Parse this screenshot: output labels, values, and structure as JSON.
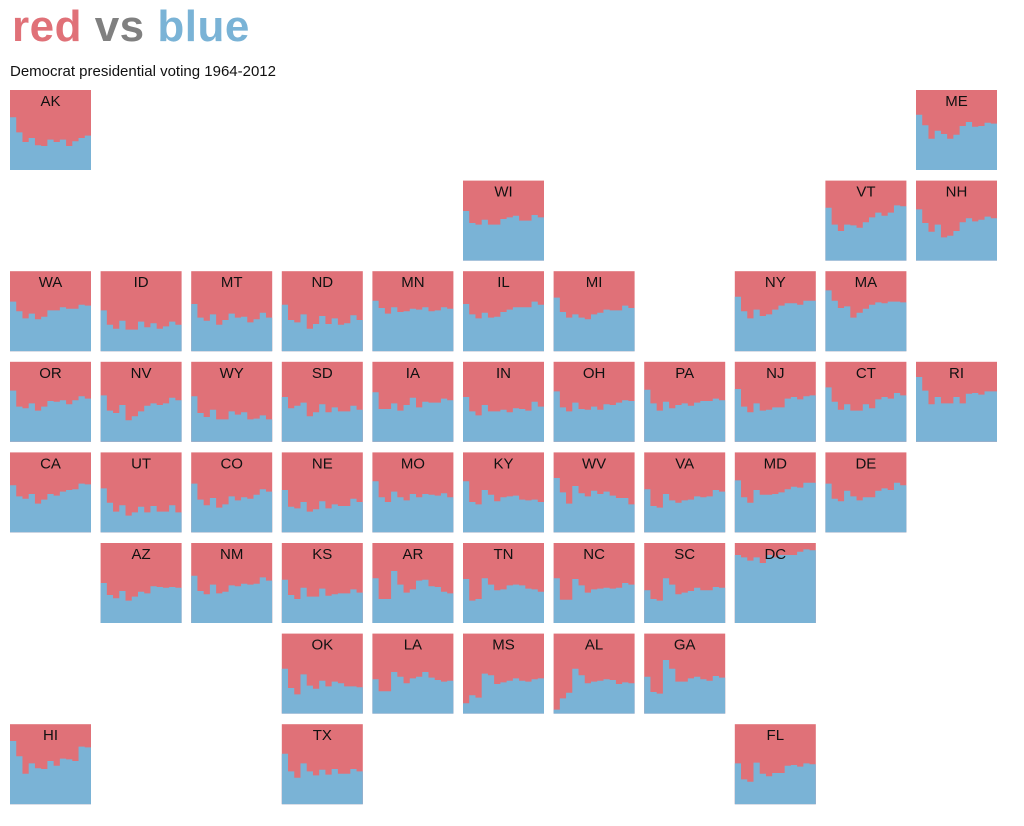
{
  "title": {
    "part1": "red",
    "part2": " vs ",
    "part3": "blue"
  },
  "subtitle": "Democrat presidential voting 1964-2012",
  "colors": {
    "red": "#e07178",
    "gray": "#808080",
    "blue": "#7ab3d6"
  },
  "chart_data": {
    "type": "area",
    "years": [
      1964,
      1968,
      1972,
      1976,
      1980,
      1984,
      1988,
      1992,
      1996,
      2000,
      2004,
      2008,
      2012
    ],
    "value_meaning": "democrat_share",
    "ylim": [
      0,
      1
    ],
    "states": [
      {
        "abbr": "AK",
        "col": 0,
        "row": 0,
        "values": [
          0.66,
          0.47,
          0.35,
          0.4,
          0.31,
          0.3,
          0.38,
          0.35,
          0.38,
          0.3,
          0.36,
          0.4,
          0.43
        ]
      },
      {
        "abbr": "ME",
        "col": 10,
        "row": 0,
        "values": [
          0.69,
          0.56,
          0.39,
          0.49,
          0.45,
          0.39,
          0.44,
          0.55,
          0.6,
          0.54,
          0.55,
          0.59,
          0.58
        ]
      },
      {
        "abbr": "WI",
        "col": 5,
        "row": 1,
        "values": [
          0.62,
          0.47,
          0.45,
          0.51,
          0.45,
          0.45,
          0.52,
          0.54,
          0.56,
          0.5,
          0.5,
          0.57,
          0.54
        ]
      },
      {
        "abbr": "VT",
        "col": 9,
        "row": 1,
        "values": [
          0.66,
          0.45,
          0.37,
          0.45,
          0.44,
          0.41,
          0.48,
          0.54,
          0.6,
          0.56,
          0.6,
          0.69,
          0.68
        ]
      },
      {
        "abbr": "NH",
        "col": 10,
        "row": 1,
        "values": [
          0.64,
          0.47,
          0.36,
          0.45,
          0.29,
          0.31,
          0.37,
          0.48,
          0.53,
          0.49,
          0.51,
          0.55,
          0.53
        ]
      },
      {
        "abbr": "WA",
        "col": 0,
        "row": 2,
        "values": [
          0.62,
          0.5,
          0.41,
          0.47,
          0.4,
          0.43,
          0.51,
          0.51,
          0.55,
          0.53,
          0.53,
          0.58,
          0.57
        ]
      },
      {
        "abbr": "ID",
        "col": 1,
        "row": 2,
        "values": [
          0.51,
          0.33,
          0.28,
          0.38,
          0.27,
          0.27,
          0.37,
          0.3,
          0.35,
          0.28,
          0.31,
          0.37,
          0.33
        ]
      },
      {
        "abbr": "MT",
        "col": 2,
        "row": 2,
        "values": [
          0.59,
          0.42,
          0.38,
          0.46,
          0.33,
          0.39,
          0.47,
          0.42,
          0.43,
          0.36,
          0.4,
          0.48,
          0.42
        ]
      },
      {
        "abbr": "ND",
        "col": 3,
        "row": 2,
        "values": [
          0.58,
          0.39,
          0.36,
          0.46,
          0.28,
          0.34,
          0.44,
          0.34,
          0.41,
          0.33,
          0.35,
          0.45,
          0.39
        ]
      },
      {
        "abbr": "MN",
        "col": 4,
        "row": 2,
        "values": [
          0.63,
          0.54,
          0.47,
          0.55,
          0.49,
          0.5,
          0.53,
          0.52,
          0.55,
          0.5,
          0.51,
          0.55,
          0.53
        ]
      },
      {
        "abbr": "IL",
        "col": 5,
        "row": 2,
        "values": [
          0.59,
          0.46,
          0.41,
          0.48,
          0.42,
          0.43,
          0.49,
          0.52,
          0.55,
          0.55,
          0.55,
          0.62,
          0.58
        ]
      },
      {
        "abbr": "MI",
        "col": 6,
        "row": 2,
        "values": [
          0.67,
          0.49,
          0.42,
          0.46,
          0.42,
          0.4,
          0.46,
          0.48,
          0.52,
          0.51,
          0.51,
          0.57,
          0.54
        ]
      },
      {
        "abbr": "NY",
        "col": 8,
        "row": 2,
        "values": [
          0.68,
          0.5,
          0.41,
          0.52,
          0.44,
          0.46,
          0.52,
          0.57,
          0.6,
          0.6,
          0.58,
          0.63,
          0.63
        ]
      },
      {
        "abbr": "MA",
        "col": 9,
        "row": 2,
        "values": [
          0.76,
          0.63,
          0.54,
          0.56,
          0.42,
          0.48,
          0.53,
          0.58,
          0.61,
          0.6,
          0.62,
          0.62,
          0.61
        ]
      },
      {
        "abbr": "OR",
        "col": 0,
        "row": 3,
        "values": [
          0.64,
          0.44,
          0.42,
          0.48,
          0.39,
          0.44,
          0.51,
          0.5,
          0.52,
          0.47,
          0.52,
          0.57,
          0.54
        ]
      },
      {
        "abbr": "NV",
        "col": 1,
        "row": 3,
        "values": [
          0.58,
          0.39,
          0.36,
          0.46,
          0.27,
          0.32,
          0.38,
          0.45,
          0.48,
          0.46,
          0.48,
          0.55,
          0.52
        ]
      },
      {
        "abbr": "WY",
        "col": 2,
        "row": 3,
        "values": [
          0.57,
          0.36,
          0.31,
          0.4,
          0.28,
          0.28,
          0.38,
          0.34,
          0.37,
          0.28,
          0.29,
          0.33,
          0.28
        ]
      },
      {
        "abbr": "SD",
        "col": 3,
        "row": 3,
        "values": [
          0.56,
          0.42,
          0.45,
          0.49,
          0.32,
          0.37,
          0.47,
          0.37,
          0.43,
          0.38,
          0.38,
          0.45,
          0.4
        ]
      },
      {
        "abbr": "IA",
        "col": 4,
        "row": 3,
        "values": [
          0.62,
          0.41,
          0.41,
          0.48,
          0.39,
          0.46,
          0.55,
          0.43,
          0.5,
          0.49,
          0.49,
          0.54,
          0.52
        ]
      },
      {
        "abbr": "IN",
        "col": 5,
        "row": 3,
        "values": [
          0.56,
          0.38,
          0.33,
          0.46,
          0.38,
          0.38,
          0.4,
          0.37,
          0.42,
          0.41,
          0.39,
          0.5,
          0.44
        ]
      },
      {
        "abbr": "OH",
        "col": 6,
        "row": 3,
        "values": [
          0.63,
          0.43,
          0.38,
          0.49,
          0.41,
          0.4,
          0.44,
          0.4,
          0.47,
          0.46,
          0.49,
          0.52,
          0.51
        ]
      },
      {
        "abbr": "PA",
        "col": 7,
        "row": 3,
        "values": [
          0.65,
          0.48,
          0.39,
          0.5,
          0.42,
          0.46,
          0.48,
          0.45,
          0.49,
          0.51,
          0.51,
          0.54,
          0.52
        ]
      },
      {
        "abbr": "NJ",
        "col": 8,
        "row": 3,
        "values": [
          0.66,
          0.44,
          0.37,
          0.48,
          0.39,
          0.4,
          0.43,
          0.43,
          0.54,
          0.56,
          0.53,
          0.57,
          0.58
        ]
      },
      {
        "abbr": "CT",
        "col": 9,
        "row": 3,
        "values": [
          0.68,
          0.5,
          0.4,
          0.47,
          0.39,
          0.39,
          0.47,
          0.42,
          0.53,
          0.56,
          0.54,
          0.61,
          0.58
        ]
      },
      {
        "abbr": "RI",
        "col": 10,
        "row": 3,
        "values": [
          0.81,
          0.64,
          0.47,
          0.56,
          0.48,
          0.48,
          0.56,
          0.48,
          0.6,
          0.61,
          0.59,
          0.63,
          0.63
        ]
      },
      {
        "abbr": "CA",
        "col": 0,
        "row": 4,
        "values": [
          0.59,
          0.45,
          0.42,
          0.48,
          0.36,
          0.41,
          0.48,
          0.46,
          0.51,
          0.53,
          0.54,
          0.61,
          0.6
        ]
      },
      {
        "abbr": "UT",
        "col": 1,
        "row": 4,
        "values": [
          0.55,
          0.37,
          0.26,
          0.34,
          0.21,
          0.25,
          0.32,
          0.25,
          0.33,
          0.26,
          0.26,
          0.34,
          0.25
        ]
      },
      {
        "abbr": "CO",
        "col": 2,
        "row": 4,
        "values": [
          0.61,
          0.41,
          0.34,
          0.43,
          0.31,
          0.35,
          0.45,
          0.4,
          0.44,
          0.42,
          0.47,
          0.54,
          0.51
        ]
      },
      {
        "abbr": "NE",
        "col": 3,
        "row": 4,
        "values": [
          0.53,
          0.32,
          0.3,
          0.38,
          0.26,
          0.29,
          0.39,
          0.3,
          0.35,
          0.33,
          0.33,
          0.42,
          0.38
        ]
      },
      {
        "abbr": "MO",
        "col": 4,
        "row": 4,
        "values": [
          0.64,
          0.44,
          0.38,
          0.51,
          0.44,
          0.4,
          0.48,
          0.44,
          0.48,
          0.47,
          0.46,
          0.49,
          0.44
        ]
      },
      {
        "abbr": "KY",
        "col": 5,
        "row": 4,
        "values": [
          0.64,
          0.38,
          0.35,
          0.53,
          0.47,
          0.39,
          0.44,
          0.45,
          0.46,
          0.41,
          0.4,
          0.41,
          0.38
        ]
      },
      {
        "abbr": "WV",
        "col": 6,
        "row": 4,
        "values": [
          0.68,
          0.5,
          0.36,
          0.58,
          0.49,
          0.45,
          0.52,
          0.48,
          0.51,
          0.46,
          0.43,
          0.43,
          0.35
        ]
      },
      {
        "abbr": "VA",
        "col": 7,
        "row": 4,
        "values": [
          0.54,
          0.33,
          0.31,
          0.48,
          0.4,
          0.37,
          0.4,
          0.41,
          0.45,
          0.44,
          0.45,
          0.53,
          0.51
        ]
      },
      {
        "abbr": "MD",
        "col": 8,
        "row": 4,
        "values": [
          0.65,
          0.44,
          0.37,
          0.53,
          0.47,
          0.47,
          0.48,
          0.5,
          0.54,
          0.57,
          0.56,
          0.62,
          0.62
        ]
      },
      {
        "abbr": "DE",
        "col": 9,
        "row": 4,
        "values": [
          0.61,
          0.42,
          0.39,
          0.52,
          0.45,
          0.4,
          0.44,
          0.44,
          0.52,
          0.55,
          0.53,
          0.62,
          0.59
        ]
      },
      {
        "abbr": "AZ",
        "col": 1,
        "row": 5,
        "values": [
          0.5,
          0.35,
          0.31,
          0.4,
          0.28,
          0.33,
          0.39,
          0.37,
          0.46,
          0.45,
          0.44,
          0.45,
          0.44
        ]
      },
      {
        "abbr": "NM",
        "col": 2,
        "row": 5,
        "values": [
          0.59,
          0.4,
          0.36,
          0.48,
          0.37,
          0.39,
          0.47,
          0.46,
          0.49,
          0.48,
          0.49,
          0.57,
          0.53
        ]
      },
      {
        "abbr": "KS",
        "col": 3,
        "row": 5,
        "values": [
          0.54,
          0.35,
          0.3,
          0.44,
          0.33,
          0.33,
          0.43,
          0.34,
          0.36,
          0.37,
          0.37,
          0.42,
          0.38
        ]
      },
      {
        "abbr": "AR",
        "col": 4,
        "row": 5,
        "values": [
          0.56,
          0.3,
          0.3,
          0.65,
          0.48,
          0.38,
          0.42,
          0.53,
          0.54,
          0.46,
          0.45,
          0.39,
          0.37
        ]
      },
      {
        "abbr": "TN",
        "col": 5,
        "row": 5,
        "values": [
          0.55,
          0.28,
          0.3,
          0.56,
          0.48,
          0.41,
          0.42,
          0.47,
          0.48,
          0.47,
          0.43,
          0.42,
          0.39
        ]
      },
      {
        "abbr": "NC",
        "col": 6,
        "row": 5,
        "values": [
          0.56,
          0.29,
          0.29,
          0.55,
          0.47,
          0.38,
          0.42,
          0.43,
          0.44,
          0.43,
          0.44,
          0.5,
          0.48
        ]
      },
      {
        "abbr": "SC",
        "col": 7,
        "row": 5,
        "values": [
          0.41,
          0.3,
          0.28,
          0.56,
          0.48,
          0.36,
          0.38,
          0.4,
          0.44,
          0.41,
          0.41,
          0.45,
          0.44
        ]
      },
      {
        "abbr": "DC",
        "col": 8,
        "row": 5,
        "values": [
          0.85,
          0.82,
          0.78,
          0.82,
          0.75,
          0.85,
          0.82,
          0.85,
          0.85,
          0.85,
          0.89,
          0.92,
          0.91
        ]
      },
      {
        "abbr": "OK",
        "col": 3,
        "row": 6,
        "values": [
          0.56,
          0.32,
          0.24,
          0.49,
          0.35,
          0.31,
          0.41,
          0.34,
          0.4,
          0.38,
          0.34,
          0.34,
          0.33
        ]
      },
      {
        "abbr": "LA",
        "col": 4,
        "row": 6,
        "values": [
          0.43,
          0.28,
          0.28,
          0.52,
          0.46,
          0.38,
          0.44,
          0.46,
          0.52,
          0.45,
          0.42,
          0.4,
          0.41
        ]
      },
      {
        "abbr": "MS",
        "col": 5,
        "row": 6,
        "values": [
          0.13,
          0.23,
          0.2,
          0.5,
          0.48,
          0.37,
          0.39,
          0.41,
          0.44,
          0.41,
          0.4,
          0.43,
          0.44
        ]
      },
      {
        "abbr": "AL",
        "col": 6,
        "row": 6,
        "values": [
          0.05,
          0.19,
          0.26,
          0.56,
          0.48,
          0.38,
          0.4,
          0.41,
          0.43,
          0.42,
          0.37,
          0.39,
          0.38
        ]
      },
      {
        "abbr": "GA",
        "col": 7,
        "row": 6,
        "values": [
          0.46,
          0.27,
          0.25,
          0.67,
          0.56,
          0.4,
          0.4,
          0.44,
          0.46,
          0.43,
          0.41,
          0.47,
          0.45
        ]
      },
      {
        "abbr": "HI",
        "col": 0,
        "row": 7,
        "values": [
          0.79,
          0.6,
          0.38,
          0.51,
          0.45,
          0.44,
          0.54,
          0.48,
          0.57,
          0.56,
          0.54,
          0.72,
          0.71
        ]
      },
      {
        "abbr": "TX",
        "col": 3,
        "row": 7,
        "values": [
          0.63,
          0.41,
          0.33,
          0.51,
          0.41,
          0.36,
          0.43,
          0.37,
          0.44,
          0.38,
          0.38,
          0.44,
          0.41
        ]
      },
      {
        "abbr": "FL",
        "col": 8,
        "row": 7,
        "values": [
          0.51,
          0.31,
          0.28,
          0.52,
          0.38,
          0.35,
          0.39,
          0.39,
          0.48,
          0.49,
          0.47,
          0.51,
          0.5
        ]
      }
    ]
  }
}
